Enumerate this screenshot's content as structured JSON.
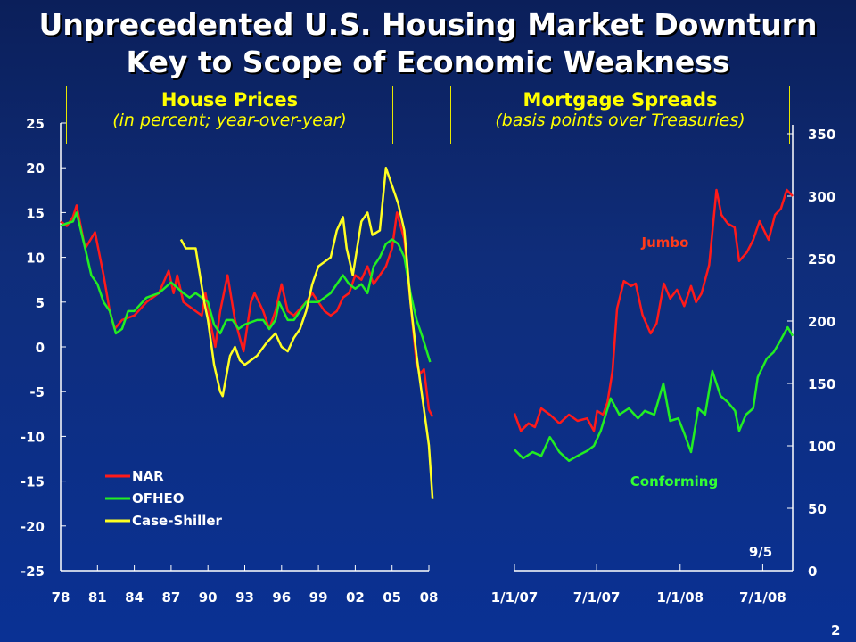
{
  "title_line1": "Unprecedented U.S. Housing Market Downturn",
  "title_line2": "Key to Scope of Economic Weakness",
  "page_number": "2",
  "chart_data": [
    {
      "type": "line",
      "title": "House Prices",
      "subtitle": "(in percent; year-over-year)",
      "ylim": [
        -25,
        25
      ],
      "yticks": [
        25,
        20,
        15,
        10,
        5,
        0,
        -5,
        -10,
        -15,
        -20,
        -25
      ],
      "xlim": [
        1978,
        2008
      ],
      "xtick_labels": [
        "78",
        "81",
        "84",
        "87",
        "90",
        "93",
        "96",
        "99",
        "02",
        "05",
        "08"
      ],
      "legend_position": "bottom-left",
      "series": [
        {
          "name": "NAR",
          "color": "#ff1a1a",
          "x": [
            1978,
            1978.5,
            1979,
            1979.3,
            1980,
            1980.8,
            1981.5,
            1982,
            1982.4,
            1983,
            1984,
            1985,
            1986,
            1986.8,
            1987.2,
            1987.5,
            1988,
            1989,
            1989.5,
            1989.8,
            1990.3,
            1990.6,
            1991,
            1991.6,
            1992.2,
            1992.9,
            1993.5,
            1993.8,
            1994.5,
            1995,
            1995.5,
            1996,
            1996.5,
            1997,
            1998,
            1998.5,
            1999,
            1999.5,
            2000,
            2000.5,
            2001,
            2001.5,
            2002,
            2002.5,
            2003,
            2003.5,
            2004,
            2004.5,
            2005,
            2005.4,
            2006,
            2006.5,
            2007,
            2007.3,
            2007.6,
            2008,
            2008.3
          ],
          "y": [
            14,
            13.5,
            14.5,
            15.8,
            11,
            12.8,
            8,
            4,
            2,
            3,
            3.5,
            5,
            6,
            8.5,
            6,
            8,
            5,
            4,
            3.5,
            6,
            2,
            0,
            4,
            8,
            3,
            -0.5,
            5,
            6,
            4,
            2,
            4,
            7,
            4,
            3.5,
            5,
            6,
            5,
            4,
            3.5,
            4,
            5.5,
            6,
            8,
            7.5,
            9,
            7,
            8,
            9,
            11,
            15,
            12,
            5,
            -2,
            -3,
            -2.5,
            -7,
            -7.8
          ]
        },
        {
          "name": "OFHEO",
          "color": "#22ee22",
          "x": [
            1978,
            1978.5,
            1979,
            1979.3,
            1980,
            1980.5,
            1981,
            1981.5,
            1982,
            1982.5,
            1983,
            1983.5,
            1984,
            1985,
            1986,
            1987,
            1988,
            1988.5,
            1989,
            1989.5,
            1990,
            1990.5,
            1991,
            1991.5,
            1992,
            1992.5,
            1993,
            1994,
            1994.5,
            1995,
            1995.5,
            1995.8,
            1996.5,
            1997,
            1998,
            1999,
            1999.5,
            2000,
            2001,
            2001.5,
            2002,
            2002.5,
            2003,
            2003.5,
            2004,
            2004.5,
            2005,
            2005.5,
            2006,
            2006.5,
            2007,
            2007.5,
            2008.1
          ],
          "y": [
            13.5,
            13.8,
            14,
            15,
            11,
            8,
            7,
            5,
            4,
            1.5,
            2,
            4,
            4,
            5.5,
            6,
            7.2,
            6,
            5.5,
            6,
            5.5,
            5,
            2.5,
            1.5,
            3,
            3,
            2,
            2.5,
            3,
            3,
            2,
            3,
            5,
            3,
            3,
            5,
            5,
            5.5,
            6,
            8,
            7,
            6.5,
            7,
            6,
            9,
            10,
            11.5,
            12,
            11.5,
            10,
            6,
            3,
            1,
            -1.7
          ]
        },
        {
          "name": "Case-Shiller",
          "color": "#ffff22",
          "x": [
            1987.8,
            1988.2,
            1989,
            1989.7,
            1990,
            1990.5,
            1991,
            1991.2,
            1991.8,
            1992.2,
            1992.6,
            1993,
            1993.5,
            1994,
            1994.8,
            1995.5,
            1996,
            1996.5,
            1997,
            1997.5,
            1998,
            1998.5,
            1999,
            1999.5,
            2000,
            2000.5,
            2001,
            2001.3,
            2001.8,
            2002.5,
            2003,
            2003.4,
            2004,
            2004.5,
            2005,
            2005.5,
            2006,
            2006.5,
            2007,
            2007.5,
            2008,
            2008.3
          ],
          "y": [
            12,
            11,
            11,
            5,
            3,
            -2,
            -5,
            -5.5,
            -1,
            0,
            -1.5,
            -2,
            -1.5,
            -1,
            0.5,
            1.5,
            0,
            -0.5,
            1,
            2,
            4,
            7,
            9,
            9.5,
            10,
            13,
            14.5,
            11,
            8,
            14,
            15,
            12.5,
            13,
            20,
            18,
            16,
            13,
            5,
            -1,
            -6,
            -11,
            -17
          ]
        }
      ]
    },
    {
      "type": "line",
      "title": "Mortgage Spreads",
      "subtitle": "(basis points over Treasuries)",
      "ylim": [
        0,
        350
      ],
      "yticks": [
        350,
        300,
        250,
        200,
        150,
        100,
        50,
        0
      ],
      "xlim": [
        "2007-01-01",
        "2008-09-05"
      ],
      "xtick_labels": [
        "1/1/07",
        "7/1/07",
        "1/1/08",
        "7/1/08"
      ],
      "end_label": "9/5",
      "series": [
        {
          "name": "Jumbo",
          "color": "#ff1a1a",
          "label_color": "#ff3b1a",
          "x": [
            "2007-01-01",
            "2007-01-15",
            "2007-02-01",
            "2007-02-15",
            "2007-03-01",
            "2007-03-20",
            "2007-04-10",
            "2007-05-01",
            "2007-05-20",
            "2007-06-10",
            "2007-06-25",
            "2007-07-02",
            "2007-07-15",
            "2007-07-25",
            "2007-08-05",
            "2007-08-15",
            "2007-08-30",
            "2007-09-15",
            "2007-09-25",
            "2007-10-10",
            "2007-10-28",
            "2007-11-10",
            "2007-11-26",
            "2007-12-10",
            "2007-12-25",
            "2008-01-10",
            "2008-01-25",
            "2008-02-05",
            "2008-02-17",
            "2008-03-05",
            "2008-03-21",
            "2008-04-01",
            "2008-04-15",
            "2008-04-30",
            "2008-05-10",
            "2008-05-27",
            "2008-06-10",
            "2008-06-24",
            "2008-07-14",
            "2008-07-28",
            "2008-08-10",
            "2008-08-23",
            "2008-09-05"
          ],
          "y": [
            126,
            112,
            118,
            115,
            130,
            125,
            118,
            125,
            120,
            122,
            112,
            128,
            125,
            135,
            160,
            210,
            232,
            228,
            230,
            205,
            190,
            198,
            230,
            218,
            225,
            212,
            228,
            215,
            222,
            245,
            305,
            285,
            278,
            275,
            248,
            255,
            265,
            280,
            265,
            285,
            290,
            305,
            300
          ]
        },
        {
          "name": "Conforming",
          "color": "#22ee22",
          "label_color": "#33ff33",
          "x": [
            "2007-01-01",
            "2007-01-20",
            "2007-02-10",
            "2007-03-01",
            "2007-03-20",
            "2007-04-10",
            "2007-05-01",
            "2007-05-20",
            "2007-06-10",
            "2007-06-25",
            "2007-07-10",
            "2007-08-01",
            "2007-08-20",
            "2007-09-10",
            "2007-09-30",
            "2007-10-15",
            "2007-11-05",
            "2007-11-25",
            "2007-12-10",
            "2007-12-28",
            "2008-01-10",
            "2008-01-25",
            "2008-02-10",
            "2008-02-25",
            "2008-03-12",
            "2008-03-30",
            "2008-04-15",
            "2008-05-01",
            "2008-05-10",
            "2008-05-25",
            "2008-06-10",
            "2008-06-20",
            "2008-07-10",
            "2008-07-25",
            "2008-08-10",
            "2008-08-25",
            "2008-09-05"
          ],
          "y": [
            97,
            90,
            95,
            92,
            107,
            95,
            88,
            92,
            96,
            100,
            112,
            138,
            125,
            130,
            122,
            128,
            125,
            150,
            120,
            122,
            110,
            95,
            130,
            125,
            160,
            140,
            135,
            128,
            112,
            125,
            130,
            155,
            170,
            175,
            185,
            195,
            188
          ]
        }
      ]
    }
  ]
}
